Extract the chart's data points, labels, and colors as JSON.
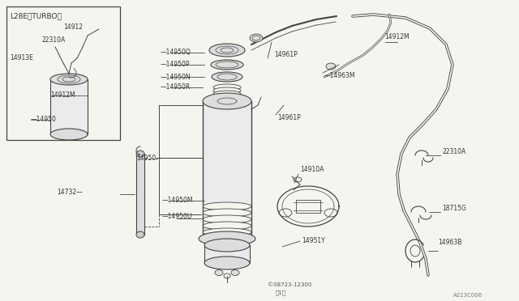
{
  "bg_color": "#f5f5f0",
  "line_color": "#444444",
  "text_color": "#333333",
  "diagram_ref": "A223C006",
  "copyright": "C08723-12300\n<1>",
  "inset_label": "L28E<TURBO>",
  "figsize": [
    6.4,
    3.72
  ],
  "dpi": 100
}
